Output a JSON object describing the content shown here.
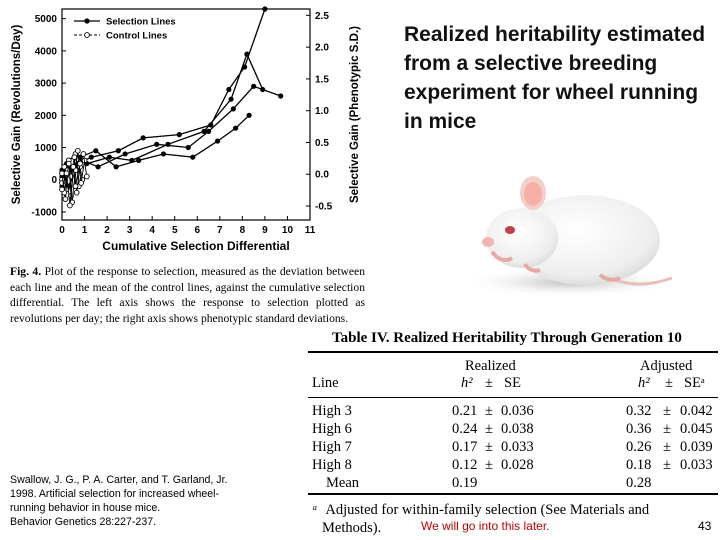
{
  "slide": {
    "title": "Realized heritability estimated from a selective breeding experiment for wheel running in mice",
    "citation": [
      "Swallow, J. G., P. A. Carter, and T. Garland, Jr.",
      "1998. Artificial selection for increased wheel-",
      "running behavior in house mice.",
      "Behavior Genetics 28:227-237."
    ],
    "note": "We will go into this later.",
    "page_number": "43"
  },
  "figure": {
    "label": "Fig. 4.",
    "caption": "Plot of the response to selection, measured as the deviation between each line and the mean of the control lines, against the cumulative selection differential. The left axis shows the response to selection plotted as revolutions per day; the right axis shows phenotypic standard deviations."
  },
  "chart_data": {
    "type": "line",
    "xlabel": "Cumulative Selection Differential",
    "ylabel": "Selective Gain (Revolutions/Day)",
    "ylabel_right": "Selective Gain (Phenotypic S.D.)",
    "xticks": [
      "0",
      "1",
      "2",
      "3",
      "4",
      "5",
      "6",
      "7",
      "8",
      "9",
      "10",
      "11"
    ],
    "yticks": [
      "-1000",
      "0",
      "1000",
      "2000",
      "3000",
      "4000",
      "5000"
    ],
    "yticks_right": [
      "-0.5",
      "0.0",
      "0.5",
      "1.0",
      "1.5",
      "2.0",
      "2.5"
    ],
    "xlim": [
      0,
      11
    ],
    "ylim": [
      -1250,
      5300
    ],
    "ylim_right": [
      -0.72,
      2.6
    ],
    "legend_position": "top-left",
    "legend": [
      "Selection Lines",
      "Control Lines"
    ],
    "series": [
      {
        "name": "Selection Lines",
        "marker": "filled",
        "x": [
          0,
          0.3,
          0.7,
          1.3,
          2.5,
          3.6,
          5.2,
          6.6,
          7.4,
          8.1,
          9
        ],
        "y": [
          100,
          400,
          500,
          700,
          900,
          1300,
          1400,
          1700,
          2800,
          3500,
          5300
        ]
      },
      {
        "name": "Selection Lines",
        "marker": "filled",
        "x": [
          0,
          0.4,
          0.9,
          1.6,
          2.8,
          4.2,
          5.6,
          6.5,
          7.6,
          8.5,
          9.7
        ],
        "y": [
          0,
          300,
          600,
          400,
          800,
          1100,
          1000,
          1500,
          2200,
          2900,
          2600
        ]
      },
      {
        "name": "Selection Lines",
        "marker": "filled",
        "x": [
          0,
          0.2,
          0.6,
          1.1,
          2.1,
          3.1,
          4.7,
          6.3,
          7.5,
          8.2,
          8.9
        ],
        "y": [
          -200,
          500,
          800,
          500,
          700,
          600,
          1100,
          1500,
          2500,
          3900,
          2800
        ]
      },
      {
        "name": "Selection Lines",
        "marker": "filled",
        "x": [
          0,
          0.3,
          0.8,
          1.5,
          2.4,
          3.4,
          4.5,
          5.8,
          6.9,
          7.7,
          8.3
        ],
        "y": [
          300,
          -200,
          700,
          900,
          400,
          600,
          800,
          700,
          1200,
          1600,
          2000
        ]
      },
      {
        "name": "Control Lines",
        "marker": "open",
        "x": [
          0,
          0.1,
          0.2,
          0.3,
          0.4,
          0.5,
          0.6,
          0.75
        ],
        "y": [
          0,
          400,
          -300,
          600,
          -500,
          200,
          800,
          -200
        ]
      },
      {
        "name": "Control Lines",
        "marker": "open",
        "x": [
          0,
          0.15,
          0.25,
          0.4,
          0.55,
          0.65,
          0.8,
          0.9
        ],
        "y": [
          -100,
          -600,
          300,
          100,
          700,
          -400,
          400,
          0
        ]
      },
      {
        "name": "Control Lines",
        "marker": "open",
        "x": [
          0,
          0.1,
          0.3,
          0.45,
          0.6,
          0.7,
          0.85,
          1.0
        ],
        "y": [
          200,
          -400,
          500,
          -700,
          300,
          900,
          -100,
          600
        ]
      },
      {
        "name": "Control Lines",
        "marker": "open",
        "x": [
          0,
          0.2,
          0.35,
          0.5,
          0.6,
          0.8,
          0.95,
          1.1
        ],
        "y": [
          -300,
          200,
          -800,
          400,
          -200,
          500,
          800,
          100
        ]
      }
    ]
  },
  "table": {
    "title": "Table IV. Realized Heritability Through Generation 10",
    "group_realized": "Realized",
    "group_adjusted": "Adjusted",
    "col_line": "Line",
    "col_h2": "h²",
    "col_pm": "±",
    "col_se": "SE",
    "col_se_adj": "SEᵃ",
    "rows": [
      {
        "line": "High 3",
        "h2": "0.21",
        "pm": "±",
        "se": "0.036",
        "h2_adj": "0.32",
        "pm_adj": "±",
        "se_adj": "0.042"
      },
      {
        "line": "High 6",
        "h2": "0.24",
        "pm": "±",
        "se": "0.038",
        "h2_adj": "0.36",
        "pm_adj": "±",
        "se_adj": "0.045"
      },
      {
        "line": "High 7",
        "h2": "0.17",
        "pm": "±",
        "se": "0.033",
        "h2_adj": "0.26",
        "pm_adj": "±",
        "se_adj": "0.039"
      },
      {
        "line": "High 8",
        "h2": "0.12",
        "pm": "±",
        "se": "0.028",
        "h2_adj": "0.18",
        "pm_adj": "±",
        "se_adj": "0.033"
      }
    ],
    "mean": {
      "line": "Mean",
      "h2": "0.19",
      "h2_adj": "0.28"
    },
    "footnote_mark": "ᵃ",
    "footnote_line1": "Adjusted for within-family selection (See Materials and",
    "footnote_line2": "Methods)."
  }
}
